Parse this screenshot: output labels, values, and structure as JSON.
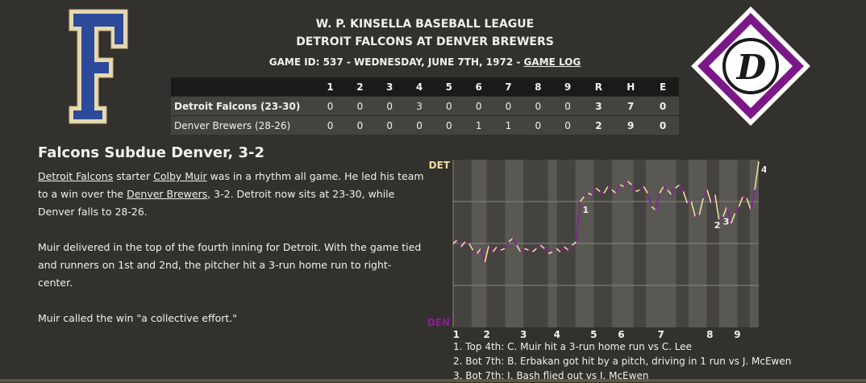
{
  "header": {
    "league": "W. P. KINSELLA BASEBALL LEAGUE",
    "matchup": "DETROIT FALCONS AT DENVER BREWERS",
    "game_info": "GAME ID: 537 - WEDNESDAY, JUNE 7TH, 1972 - ",
    "game_log_link": "GAME LOG"
  },
  "logos": {
    "away_letter": "F",
    "home_letter": "D",
    "away_color": "#2b4a9a",
    "home_color": "#7b1788"
  },
  "linescore": {
    "innings": [
      "1",
      "2",
      "3",
      "4",
      "5",
      "6",
      "7",
      "8",
      "9"
    ],
    "totals_headers": [
      "R",
      "H",
      "E"
    ],
    "rows": [
      {
        "team": "Detroit Falcons (23-30)",
        "innings": [
          "0",
          "0",
          "0",
          "3",
          "0",
          "0",
          "0",
          "0",
          "0"
        ],
        "totals": [
          "3",
          "7",
          "0"
        ]
      },
      {
        "team": "Denver Brewers (28-26)",
        "innings": [
          "0",
          "0",
          "0",
          "0",
          "0",
          "1",
          "1",
          "0",
          "0"
        ],
        "totals": [
          "2",
          "9",
          "0"
        ]
      }
    ]
  },
  "story": {
    "headline": "Falcons Subdue Denver, 3-2",
    "p1": {
      "team1": "Detroit Falcons",
      "t1": " starter ",
      "player": "Colby Muir",
      "t2": " was in a rhythm all game. He led his team to a win over the ",
      "team2": "Denver Brewers",
      "t3": ", 3-2. Detroit now sits at 23-30, while Denver falls to 28-26."
    },
    "p2": "Muir delivered in the top of the fourth inning for Detroit. With the game tied and runners on 1st and 2nd, the pitcher hit a 3-run home run to right-center.",
    "p3": "Muir called the win \"a collective effort.\""
  },
  "chart_data": {
    "type": "line",
    "title": "",
    "top_label": "DET",
    "bottom_label": "DEN",
    "xlabel": "",
    "ylabel": "",
    "ylim": [
      0,
      100
    ],
    "inning_labels": [
      "1",
      "2",
      "3",
      "4",
      "5",
      "6",
      "7",
      "8",
      "9"
    ],
    "colors": {
      "away": "#f0de9c",
      "home": "#8b1d9a"
    },
    "series": [
      {
        "values": [
          50,
          52,
          48,
          51,
          50,
          46,
          44,
          47,
          39,
          49,
          45,
          48,
          46,
          47,
          51,
          53,
          49,
          45,
          47,
          46,
          45,
          47,
          49,
          47,
          44,
          45,
          47,
          45,
          48,
          46,
          49,
          51,
          75,
          78,
          80,
          79,
          83,
          81,
          80,
          84,
          82,
          80,
          85,
          84,
          87,
          85,
          81,
          82,
          84,
          80,
          72,
          70,
          80,
          84,
          82,
          79,
          83,
          85,
          81,
          74,
          75,
          66,
          67,
          77,
          82,
          74,
          79,
          64,
          66,
          72,
          62,
          68,
          72,
          78,
          77,
          70,
          82,
          99
        ],
        "annotations": [
          {
            "label": "1",
            "x_index": 32
          },
          {
            "label": "2",
            "x_index": 67
          },
          {
            "label": "3",
            "x_index": 68
          },
          {
            "label": "4",
            "x_index": 77
          }
        ]
      }
    ]
  },
  "plays": [
    "1. Top 4th: C. Muir hit a 3-run home run vs C. Lee",
    "2. Bot 7th: B. Erbakan got hit by a pitch, driving in 1 run vs J. McEwen",
    "3. Bot 7th: I. Bash flied out vs J. McEwen"
  ]
}
